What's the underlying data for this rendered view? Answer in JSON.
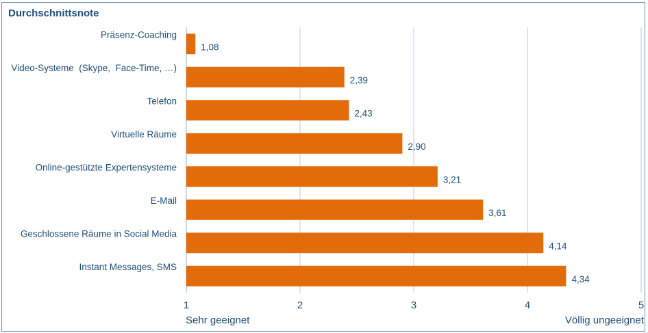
{
  "chart_data": {
    "type": "bar",
    "orientation": "horizontal",
    "title": "Durchschnittsnote",
    "categories": [
      "Präsenz-Coaching",
      "Video-Systeme  (Skype,  Face-Time, …)",
      "Telefon",
      "Virtuelle Räume",
      "Online-gestützte Expertensysteme",
      "E-Mail",
      "Geschlossene Räume in Social Media",
      "Instant Messages, SMS"
    ],
    "values": [
      1.08,
      2.39,
      2.43,
      2.9,
      3.21,
      3.61,
      4.14,
      4.34
    ],
    "value_labels": [
      "1,08",
      "2,39",
      "2,43",
      "2,90",
      "3,21",
      "3,61",
      "4,14",
      "4,34"
    ],
    "xlim": [
      1,
      5
    ],
    "x_ticks": [
      "1",
      "2",
      "3",
      "4",
      "5"
    ],
    "x_end_labels": {
      "left": "Sehr geeignet",
      "right": "Völlig ungeeignet"
    },
    "grid": true,
    "bar_color": "#e36c0a",
    "grid_color": "#b8c8dc",
    "text_color": "#1f4e79"
  }
}
